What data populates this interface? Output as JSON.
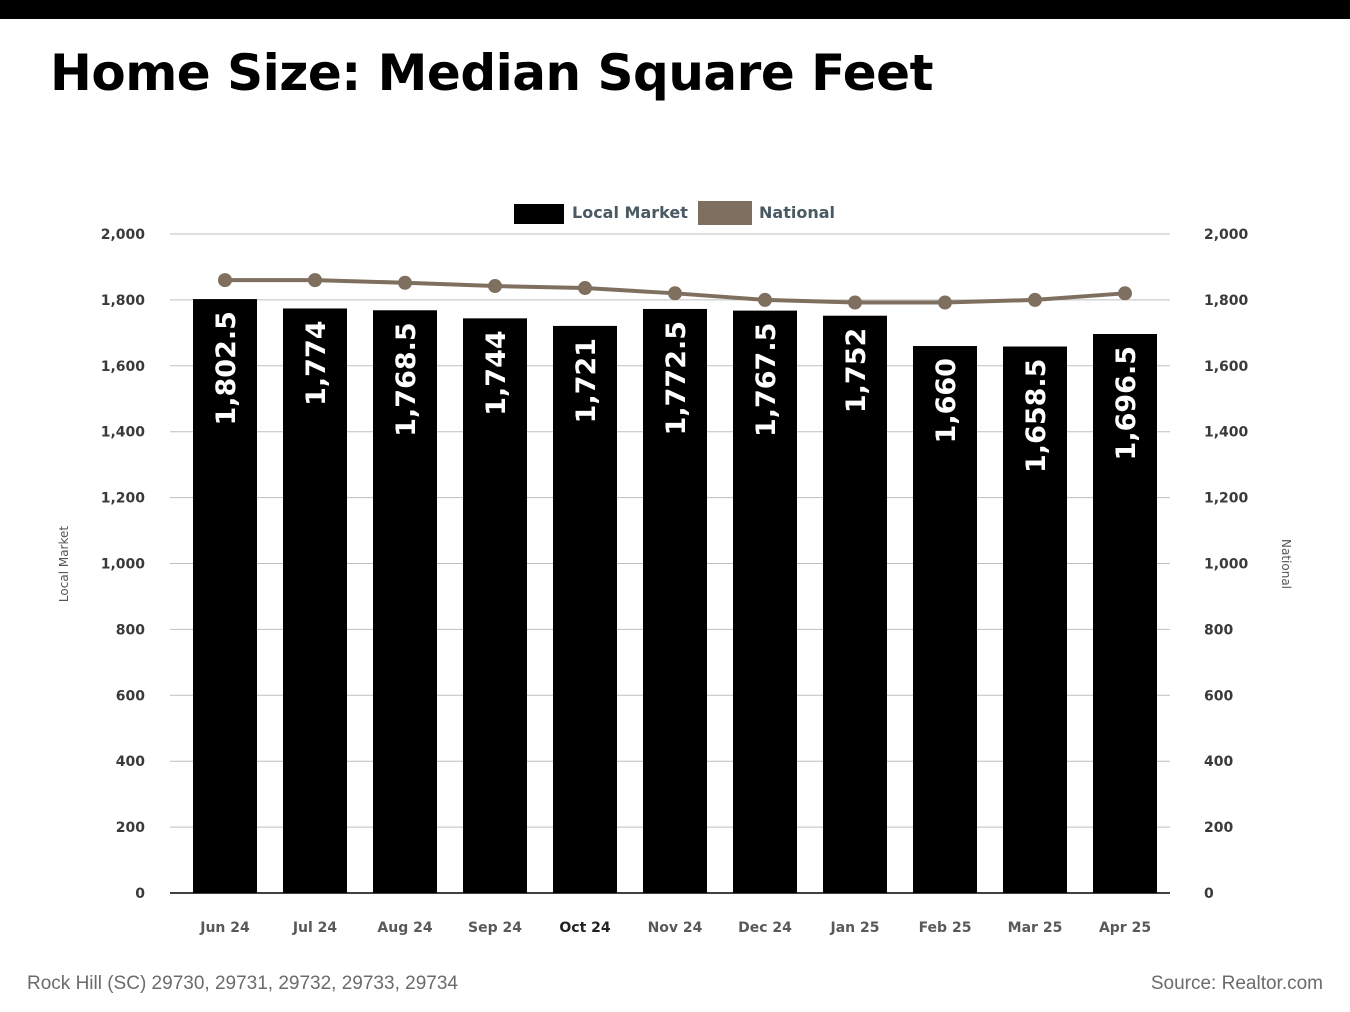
{
  "title": "Home Size: Median Square Feet",
  "footer": {
    "location": "Rock Hill (SC) 29730, 29731, 29732, 29733, 29734",
    "source": "Source: Realtor.com"
  },
  "colors": {
    "local": "#000000",
    "national": "#7f6f5f",
    "legend_text": "#4a5a63",
    "grid": "#bfbfbf"
  },
  "chart_data": {
    "type": "bar",
    "categories": [
      "Jun 24",
      "Jul 24",
      "Aug 24",
      "Sep 24",
      "Oct 24",
      "Nov 24",
      "Dec 24",
      "Jan 25",
      "Feb 25",
      "Mar 25",
      "Apr 25"
    ],
    "series": [
      {
        "name": "Local Market",
        "type": "bar",
        "values": [
          1802.5,
          1774,
          1768.5,
          1744,
          1721,
          1772.5,
          1767.5,
          1752,
          1660,
          1658.5,
          1696.5
        ],
        "labels": [
          "1,802.5",
          "1,774",
          "1,768.5",
          "1,744",
          "1,721",
          "1,772.5",
          "1,767.5",
          "1,752",
          "1,660",
          "1,658.5",
          "1,696.5"
        ]
      },
      {
        "name": "National",
        "type": "line",
        "values": [
          1860,
          1860,
          1852,
          1842,
          1836,
          1820,
          1800,
          1792,
          1792,
          1800,
          1820
        ]
      }
    ],
    "ylabel_left": "Local Market",
    "ylabel_right": "National",
    "ylim": [
      0,
      2000
    ],
    "yticks": [
      0,
      200,
      400,
      600,
      800,
      1000,
      1200,
      1400,
      1600,
      1800,
      2000
    ],
    "ytick_labels": [
      "0",
      "200",
      "400",
      "600",
      "800",
      "1,000",
      "1,200",
      "1,400",
      "1,600",
      "1,800",
      "2,000"
    ],
    "grid": true,
    "legend_position": "top-center"
  }
}
